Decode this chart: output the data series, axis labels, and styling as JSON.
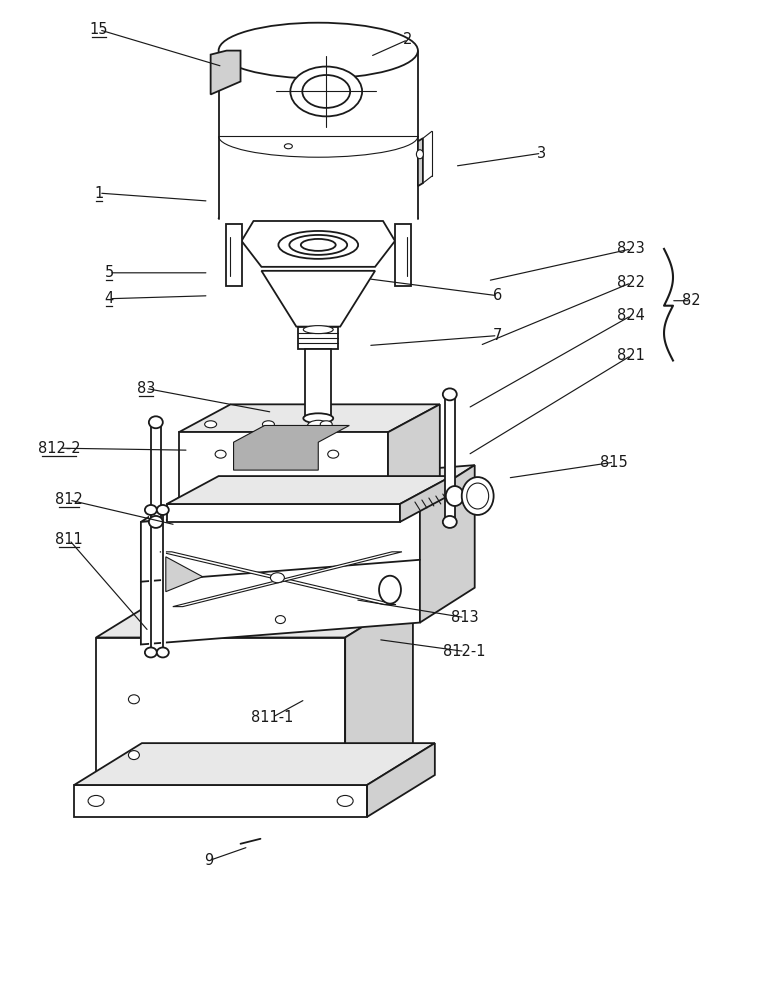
{
  "bg_color": "#ffffff",
  "lc": "#1a1a1a",
  "lw": 1.3,
  "lw_thin": 0.8,
  "figsize": [
    7.82,
    10.0
  ],
  "dpi": 100,
  "annotations": [
    [
      "2",
      408,
      38,
      370,
      55,
      false
    ],
    [
      "3",
      542,
      152,
      455,
      165,
      false
    ],
    [
      "15",
      98,
      28,
      222,
      65,
      true
    ],
    [
      "1",
      98,
      192,
      208,
      200,
      true
    ],
    [
      "5",
      108,
      272,
      208,
      272,
      true
    ],
    [
      "4",
      108,
      298,
      208,
      295,
      true
    ],
    [
      "6",
      498,
      295,
      368,
      278,
      false
    ],
    [
      "7",
      498,
      335,
      368,
      345,
      false
    ],
    [
      "83",
      145,
      388,
      272,
      412,
      true
    ],
    [
      "823",
      632,
      248,
      488,
      280,
      false
    ],
    [
      "822",
      632,
      282,
      480,
      345,
      false
    ],
    [
      "824",
      632,
      315,
      468,
      408,
      false
    ],
    [
      "821",
      632,
      355,
      468,
      455,
      false
    ],
    [
      "82",
      692,
      300,
      672,
      300,
      false
    ],
    [
      "815",
      615,
      462,
      508,
      478,
      false
    ],
    [
      "812-2",
      58,
      448,
      188,
      450,
      true
    ],
    [
      "812",
      68,
      500,
      175,
      525,
      true
    ],
    [
      "811",
      68,
      540,
      148,
      632,
      true
    ],
    [
      "813",
      465,
      618,
      355,
      600,
      false
    ],
    [
      "812-1",
      465,
      652,
      378,
      640,
      false
    ],
    [
      "811-1",
      272,
      718,
      305,
      700,
      false
    ],
    [
      "9",
      208,
      862,
      248,
      848,
      false
    ]
  ],
  "underlined": [
    "15",
    "1",
    "5",
    "4",
    "83",
    "812-2",
    "812",
    "811"
  ]
}
